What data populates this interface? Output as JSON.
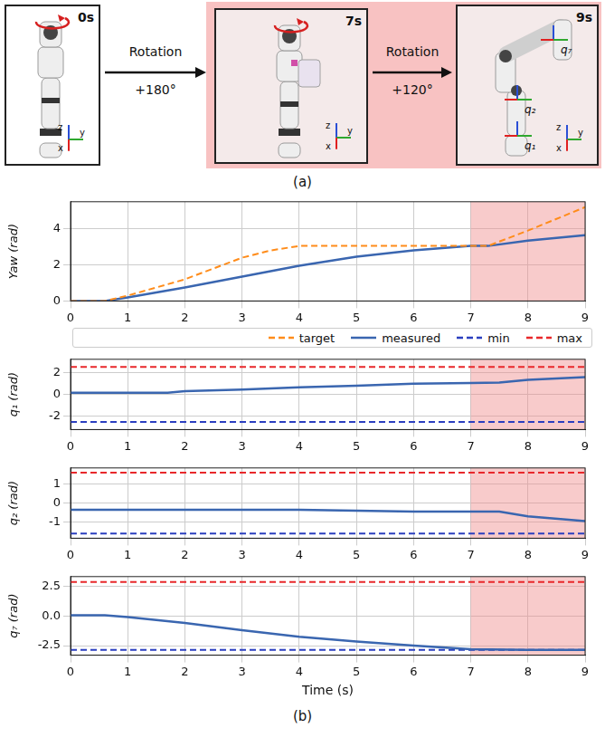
{
  "panel_a": {
    "caption": "(a)",
    "frames": [
      {
        "time": "0s",
        "axes": [
          "z",
          "y",
          "x"
        ]
      },
      {
        "time": "7s",
        "axes": [
          "z",
          "y",
          "x"
        ]
      },
      {
        "time": "9s",
        "axes": [
          "z",
          "y",
          "x"
        ],
        "joints": [
          "q₇",
          "q₂",
          "q₁"
        ]
      }
    ],
    "arrows": [
      {
        "text": "Rotation",
        "angle": "+180°"
      },
      {
        "text": "Rotation",
        "angle": "+120°"
      }
    ]
  },
  "caption_b": "(b)",
  "chart_data": [
    {
      "type": "line",
      "y_label": "Yaw (rad)",
      "xlim": [
        0,
        9
      ],
      "xticks": [
        0,
        1,
        2,
        3,
        4,
        5,
        6,
        7,
        8,
        9
      ],
      "ylim": [
        0,
        5.5
      ],
      "yticks": [
        0,
        2,
        4
      ],
      "grid": true,
      "highlight_range": [
        7,
        9
      ],
      "x": [
        0,
        0.6,
        1,
        2,
        3,
        3.5,
        4,
        5,
        6,
        7,
        7.3,
        8,
        9
      ],
      "series": [
        {
          "name": "target",
          "color": "#ff8c1a",
          "line_style": "dashed",
          "values": [
            0,
            0,
            0.3,
            1.2,
            2.4,
            2.8,
            3.05,
            3.05,
            3.05,
            3.05,
            3.05,
            3.9,
            5.2
          ]
        },
        {
          "name": "measured",
          "color": "#3a66b0",
          "line_style": "solid",
          "values": [
            0,
            0,
            0.2,
            0.75,
            1.35,
            1.65,
            1.95,
            2.45,
            2.8,
            3.05,
            3.05,
            3.35,
            3.65
          ]
        }
      ]
    },
    {
      "type": "line",
      "y_label": "q₁ (rad)",
      "xlim": [
        0,
        9
      ],
      "xticks": [
        0,
        1,
        2,
        3,
        4,
        5,
        6,
        7,
        8,
        9
      ],
      "ylim": [
        -3.25,
        3.25
      ],
      "yticks": [
        -2,
        0,
        2
      ],
      "grid": true,
      "highlight_range": [
        7,
        9
      ],
      "legend": "top",
      "x": [
        0,
        1.7,
        2,
        3,
        4,
        5,
        6,
        7,
        7.5,
        8,
        9
      ],
      "series": [
        {
          "name": "measured",
          "color": "#3a66b0",
          "line_style": "solid",
          "values": [
            0.15,
            0.15,
            0.3,
            0.45,
            0.65,
            0.8,
            1.0,
            1.05,
            1.1,
            1.35,
            1.6
          ]
        },
        {
          "name": "min",
          "color": "#2b3fbf",
          "line_style": "dashed",
          "values": [
            -2.55,
            -2.55,
            -2.55,
            -2.55,
            -2.55,
            -2.55,
            -2.55,
            -2.55,
            -2.55,
            -2.55,
            -2.55
          ]
        },
        {
          "name": "max",
          "color": "#e8282b",
          "line_style": "dashed",
          "values": [
            2.55,
            2.55,
            2.55,
            2.55,
            2.55,
            2.55,
            2.55,
            2.55,
            2.55,
            2.55,
            2.55
          ]
        }
      ]
    },
    {
      "type": "line",
      "y_label": "q₂ (rad)",
      "xlim": [
        0,
        9
      ],
      "xticks": [
        0,
        1,
        2,
        3,
        4,
        5,
        6,
        7,
        8,
        9
      ],
      "ylim": [
        -1.85,
        1.85
      ],
      "yticks": [
        -1,
        0,
        1
      ],
      "grid": true,
      "highlight_range": [
        7,
        9
      ],
      "x": [
        0,
        1,
        2,
        3,
        4,
        5,
        6,
        7,
        7.5,
        8,
        9
      ],
      "series": [
        {
          "name": "measured",
          "color": "#3a66b0",
          "line_style": "solid",
          "values": [
            -0.35,
            -0.35,
            -0.35,
            -0.35,
            -0.35,
            -0.4,
            -0.45,
            -0.45,
            -0.45,
            -0.7,
            -0.95
          ]
        },
        {
          "name": "min",
          "color": "#2b3fbf",
          "line_style": "dashed",
          "values": [
            -1.6,
            -1.6,
            -1.6,
            -1.6,
            -1.6,
            -1.6,
            -1.6,
            -1.6,
            -1.6,
            -1.6,
            -1.6
          ]
        },
        {
          "name": "max",
          "color": "#e8282b",
          "line_style": "dashed",
          "values": [
            1.6,
            1.6,
            1.6,
            1.6,
            1.6,
            1.6,
            1.6,
            1.6,
            1.6,
            1.6,
            1.6
          ]
        }
      ]
    },
    {
      "type": "line",
      "y_label": "q₇ (rad)",
      "x_label": "Time (s)",
      "xlim": [
        0,
        9
      ],
      "xticks": [
        0,
        1,
        2,
        3,
        4,
        5,
        6,
        7,
        8,
        9
      ],
      "ylim": [
        -3.3,
        3.3
      ],
      "yticks": [
        {
          "value": -2.5,
          "label": "-2.5"
        },
        {
          "value": 0,
          "label": "0.0"
        },
        {
          "value": 2.5,
          "label": "2.5"
        }
      ],
      "grid": true,
      "highlight_range": [
        7,
        9
      ],
      "x": [
        0,
        0.6,
        1,
        2,
        3,
        4,
        5,
        6,
        7,
        8,
        9
      ],
      "series": [
        {
          "name": "measured",
          "color": "#3a66b0",
          "line_style": "solid",
          "values": [
            0.05,
            0.05,
            -0.1,
            -0.6,
            -1.2,
            -1.75,
            -2.15,
            -2.5,
            -2.8,
            -2.85,
            -2.85
          ]
        },
        {
          "name": "min",
          "color": "#2b3fbf",
          "line_style": "dashed",
          "values": [
            -2.85,
            -2.85,
            -2.85,
            -2.85,
            -2.85,
            -2.85,
            -2.85,
            -2.85,
            -2.85,
            -2.85,
            -2.85
          ]
        },
        {
          "name": "max",
          "color": "#e8282b",
          "line_style": "dashed",
          "values": [
            2.85,
            2.85,
            2.85,
            2.85,
            2.85,
            2.85,
            2.85,
            2.85,
            2.85,
            2.85,
            2.85
          ]
        }
      ]
    }
  ]
}
